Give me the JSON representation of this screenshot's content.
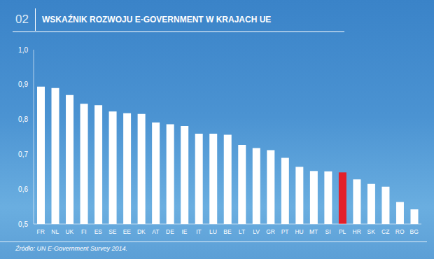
{
  "chart_data": {
    "type": "bar",
    "title": "WSKAŹNIK ROZWOJU E-GOVERNMENT W KRAJACH UE",
    "annotations": [
      "02",
      "Źródło: UN E-Government Survey 2014."
    ],
    "categories": [
      "FR",
      "NL",
      "UK",
      "FI",
      "ES",
      "SE",
      "EE",
      "DK",
      "AT",
      "DE",
      "IE",
      "IT",
      "LU",
      "BE",
      "LT",
      "LV",
      "GR",
      "PT",
      "HU",
      "MT",
      "SI",
      "PL",
      "HR",
      "SK",
      "CZ",
      "RO",
      "BG"
    ],
    "values": [
      0.894,
      0.89,
      0.87,
      0.845,
      0.841,
      0.823,
      0.818,
      0.816,
      0.791,
      0.786,
      0.781,
      0.759,
      0.759,
      0.756,
      0.727,
      0.718,
      0.712,
      0.69,
      0.664,
      0.652,
      0.651,
      0.648,
      0.628,
      0.615,
      0.607,
      0.563,
      0.542
    ],
    "colors": [
      "#ffffff",
      "#ffffff",
      "#ffffff",
      "#ffffff",
      "#ffffff",
      "#ffffff",
      "#ffffff",
      "#ffffff",
      "#ffffff",
      "#ffffff",
      "#ffffff",
      "#ffffff",
      "#ffffff",
      "#ffffff",
      "#ffffff",
      "#ffffff",
      "#ffffff",
      "#ffffff",
      "#ffffff",
      "#ffffff",
      "#ffffff",
      "#e3202a",
      "#ffffff",
      "#ffffff",
      "#ffffff",
      "#ffffff",
      "#ffffff"
    ],
    "ylim": [
      0.5,
      1.0
    ],
    "yticks": [
      {
        "value": 0.5,
        "label": "0,5"
      },
      {
        "value": 0.6,
        "label": "0,6"
      },
      {
        "value": 0.7,
        "label": "0,7"
      },
      {
        "value": 0.8,
        "label": "0,8"
      },
      {
        "value": 0.9,
        "label": "0,9"
      },
      {
        "value": 1.0,
        "label": "1,0"
      }
    ],
    "grid": false,
    "data_labels": false
  }
}
